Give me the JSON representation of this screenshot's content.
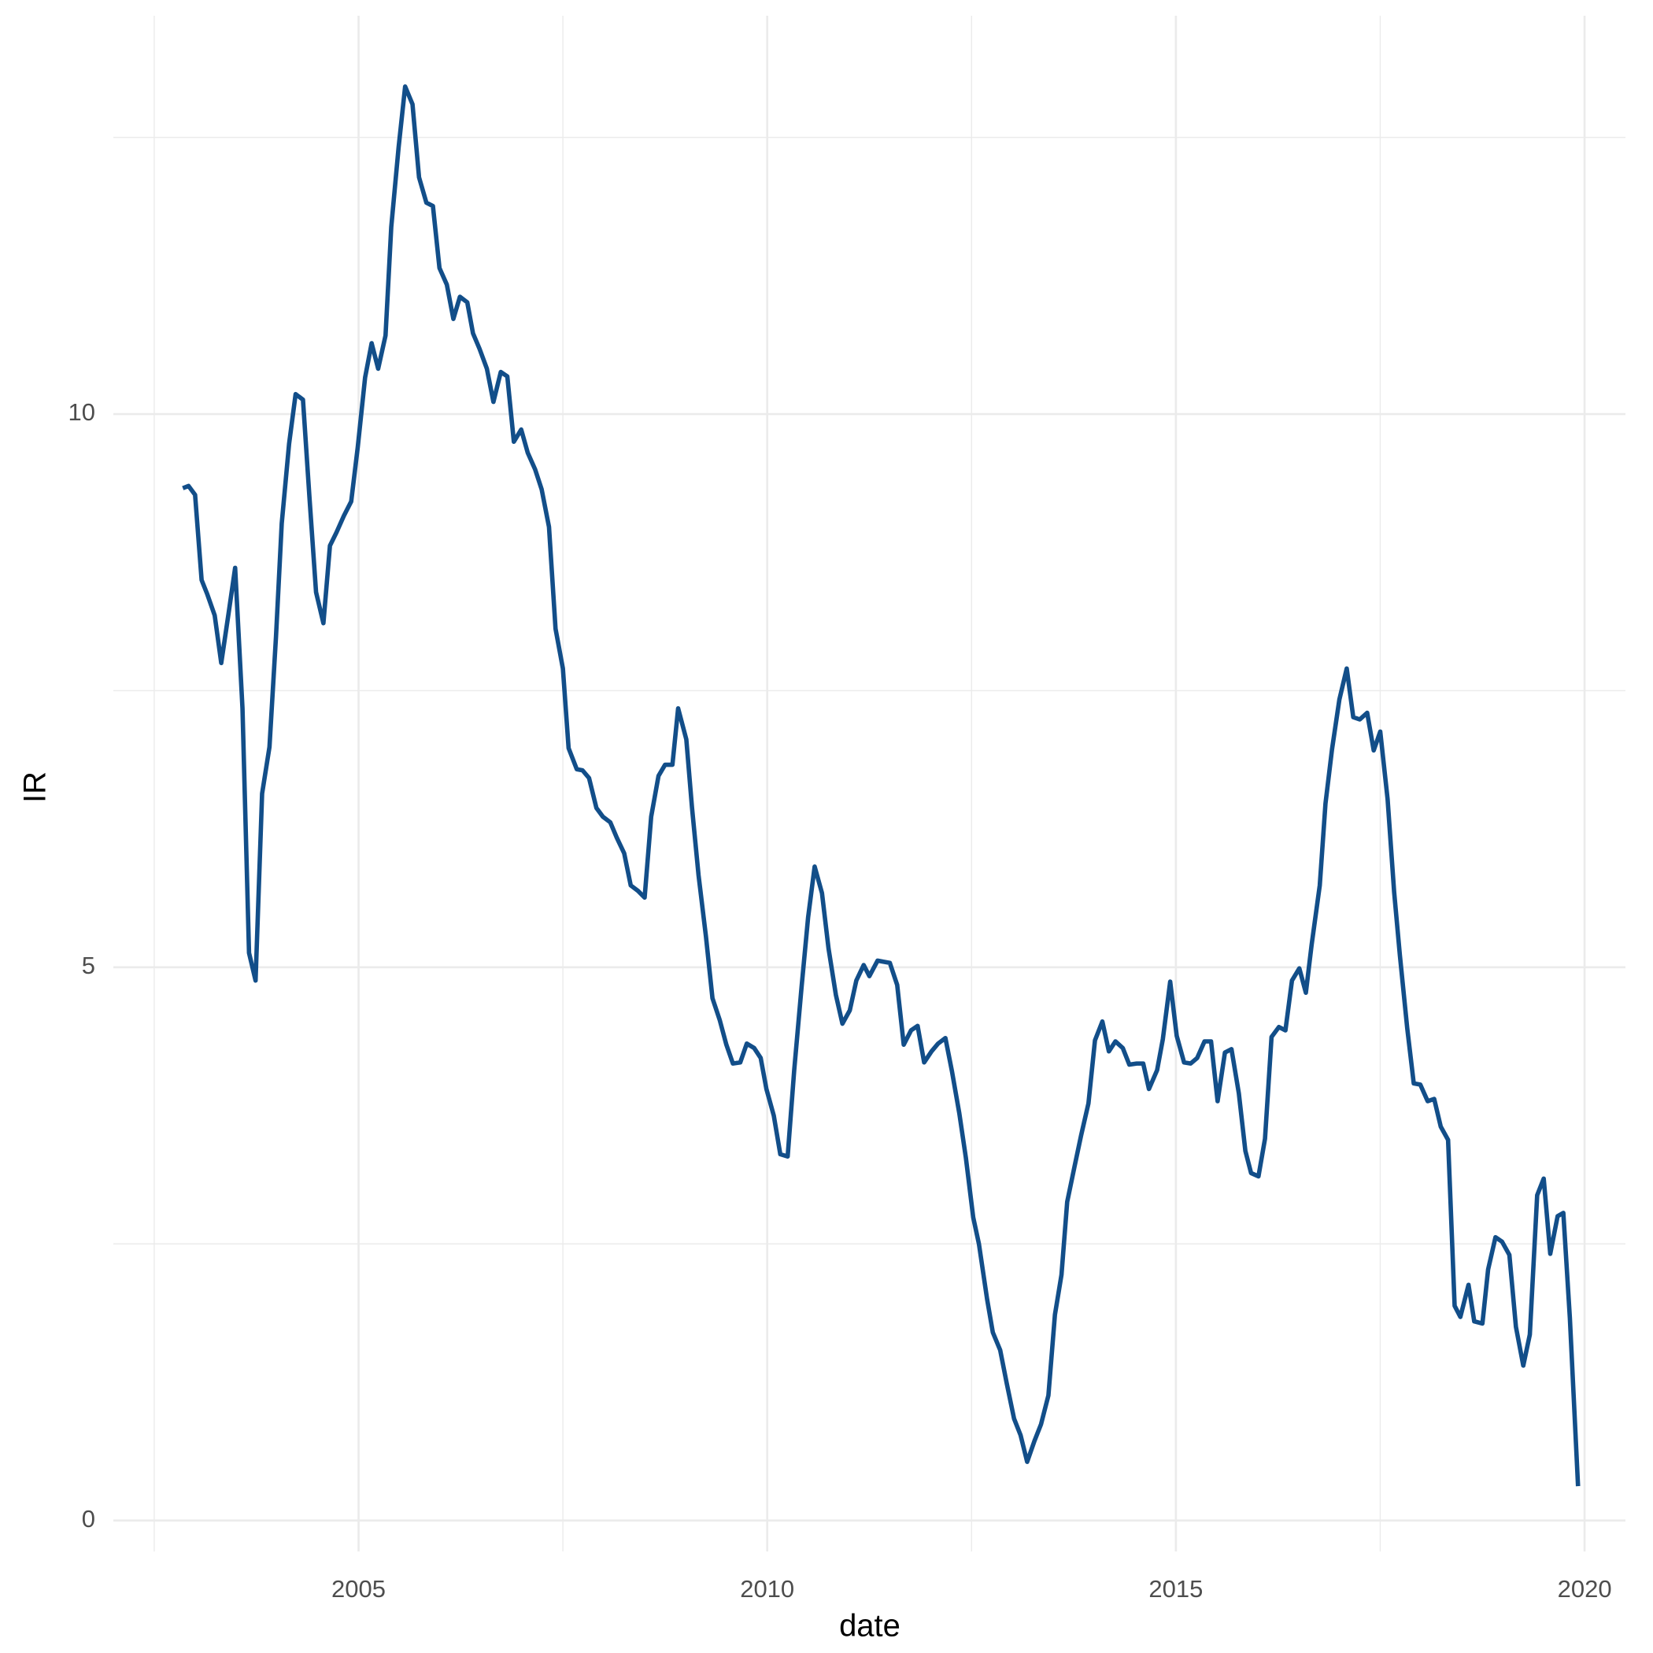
{
  "chart_data": {
    "type": "line",
    "x_label": "date",
    "y_label": "IR",
    "color": "#124e89",
    "grid": true,
    "xlim": [
      2002.0,
      2020.5
    ],
    "xticks": [
      2005,
      2010,
      2015,
      2020
    ],
    "ylim": [
      -0.28,
      13.6
    ],
    "yticks": [
      0,
      5,
      10
    ],
    "x": [
      2002.85,
      2002.92,
      2003.0,
      2003.08,
      2003.15,
      2003.24,
      2003.32,
      2003.41,
      2003.49,
      2003.58,
      2003.66,
      2003.74,
      2003.82,
      2003.91,
      2003.99,
      2004.06,
      2004.15,
      2004.23,
      2004.32,
      2004.4,
      2004.48,
      2004.57,
      2004.65,
      2004.73,
      2004.82,
      2004.91,
      2004.99,
      2005.08,
      2005.16,
      2005.24,
      2005.33,
      2005.4,
      2005.49,
      2005.57,
      2005.66,
      2005.74,
      2005.83,
      2005.91,
      2005.99,
      2006.08,
      2006.16,
      2006.24,
      2006.33,
      2006.4,
      2006.48,
      2006.57,
      2006.65,
      2006.74,
      2006.82,
      2006.9,
      2006.99,
      2007.07,
      2007.16,
      2007.24,
      2007.33,
      2007.41,
      2007.5,
      2007.57,
      2007.67,
      2007.74,
      2007.82,
      2007.91,
      2007.99,
      2008.08,
      2008.16,
      2008.25,
      2008.33,
      2008.42,
      2008.5,
      2008.58,
      2008.67,
      2008.75,
      2008.84,
      2008.91,
      2009.01,
      2009.08,
      2009.16,
      2009.25,
      2009.33,
      2009.42,
      2009.5,
      2009.58,
      2009.67,
      2009.75,
      2009.84,
      2009.92,
      2009.99,
      2010.08,
      2010.16,
      2010.25,
      2010.33,
      2010.42,
      2010.5,
      2010.58,
      2010.67,
      2010.75,
      2010.84,
      2010.92,
      2011.01,
      2011.09,
      2011.18,
      2011.25,
      2011.35,
      2011.42,
      2011.5,
      2011.59,
      2011.67,
      2011.76,
      2011.84,
      2011.92,
      2012.01,
      2012.09,
      2012.18,
      2012.26,
      2012.35,
      2012.43,
      2012.52,
      2012.59,
      2012.69,
      2012.76,
      2012.85,
      2012.93,
      2013.02,
      2013.1,
      2013.18,
      2013.27,
      2013.35,
      2013.44,
      2013.52,
      2013.6,
      2013.67,
      2013.76,
      2013.84,
      2013.93,
      2014.01,
      2014.1,
      2014.18,
      2014.26,
      2014.35,
      2014.43,
      2014.52,
      2014.6,
      2014.67,
      2014.77,
      2014.84,
      2014.93,
      2015.01,
      2015.1,
      2015.18,
      2015.26,
      2015.35,
      2015.43,
      2015.51,
      2015.6,
      2015.68,
      2015.77,
      2015.85,
      2015.92,
      2016.01,
      2016.09,
      2016.17,
      2016.26,
      2016.34,
      2016.42,
      2016.51,
      2016.59,
      2016.66,
      2016.76,
      2016.83,
      2016.91,
      2017.0,
      2017.09,
      2017.17,
      2017.25,
      2017.34,
      2017.42,
      2017.5,
      2017.59,
      2017.67,
      2017.74,
      2017.83,
      2017.91,
      2017.99,
      2018.08,
      2018.16,
      2018.24,
      2018.33,
      2018.41,
      2018.48,
      2018.58,
      2018.65,
      2018.75,
      2018.82,
      2018.91,
      2018.99,
      2019.08,
      2019.16,
      2019.25,
      2019.33,
      2019.42,
      2019.5,
      2019.58,
      2019.67,
      2019.74,
      2019.82,
      2019.92
    ],
    "values": [
      9.33,
      9.35,
      9.27,
      8.5,
      8.37,
      8.18,
      7.75,
      8.2,
      8.61,
      7.34,
      5.13,
      4.88,
      6.57,
      6.99,
      7.99,
      9.01,
      9.73,
      10.18,
      10.13,
      9.24,
      8.39,
      8.11,
      8.81,
      8.93,
      9.08,
      9.21,
      9.7,
      10.33,
      10.64,
      10.41,
      10.71,
      11.69,
      12.41,
      12.96,
      12.8,
      12.14,
      11.91,
      11.88,
      11.32,
      11.17,
      10.86,
      11.06,
      11.01,
      10.73,
      10.59,
      10.41,
      10.11,
      10.38,
      10.34,
      9.75,
      9.86,
      9.65,
      9.5,
      9.32,
      8.98,
      8.06,
      7.7,
      6.98,
      6.79,
      6.78,
      6.71,
      6.44,
      6.36,
      6.31,
      6.17,
      6.03,
      5.74,
      5.69,
      5.63,
      6.36,
      6.73,
      6.83,
      6.83,
      7.34,
      7.06,
      6.44,
      5.83,
      5.28,
      4.72,
      4.52,
      4.3,
      4.13,
      4.14,
      4.31,
      4.27,
      4.18,
      3.9,
      3.66,
      3.31,
      3.29,
      4.07,
      4.82,
      5.45,
      5.91,
      5.67,
      5.17,
      4.75,
      4.49,
      4.61,
      4.88,
      5.02,
      4.92,
      5.06,
      5.05,
      5.04,
      4.84,
      4.3,
      4.43,
      4.47,
      4.14,
      4.24,
      4.31,
      4.36,
      4.06,
      3.68,
      3.28,
      2.74,
      2.5,
      2.0,
      1.7,
      1.54,
      1.24,
      0.92,
      0.77,
      0.53,
      0.72,
      0.87,
      1.13,
      1.86,
      2.22,
      2.88,
      3.2,
      3.48,
      3.77,
      4.34,
      4.51,
      4.24,
      4.33,
      4.27,
      4.12,
      4.13,
      4.13,
      3.9,
      4.07,
      4.35,
      4.87,
      4.38,
      4.14,
      4.13,
      4.18,
      4.33,
      4.33,
      3.79,
      4.23,
      4.26,
      3.86,
      3.34,
      3.14,
      3.11,
      3.45,
      4.37,
      4.46,
      4.43,
      4.88,
      4.99,
      4.77,
      5.2,
      5.74,
      6.48,
      6.97,
      7.42,
      7.7,
      7.26,
      7.24,
      7.3,
      6.96,
      7.13,
      6.52,
      5.68,
      5.11,
      4.45,
      3.95,
      3.94,
      3.79,
      3.81,
      3.56,
      3.44,
      1.94,
      1.84,
      2.13,
      1.8,
      1.78,
      2.27,
      2.56,
      2.52,
      2.4,
      1.75,
      1.4,
      1.68,
      2.94,
      3.09,
      2.41,
      2.75,
      2.78,
      1.83,
      0.31
    ]
  }
}
